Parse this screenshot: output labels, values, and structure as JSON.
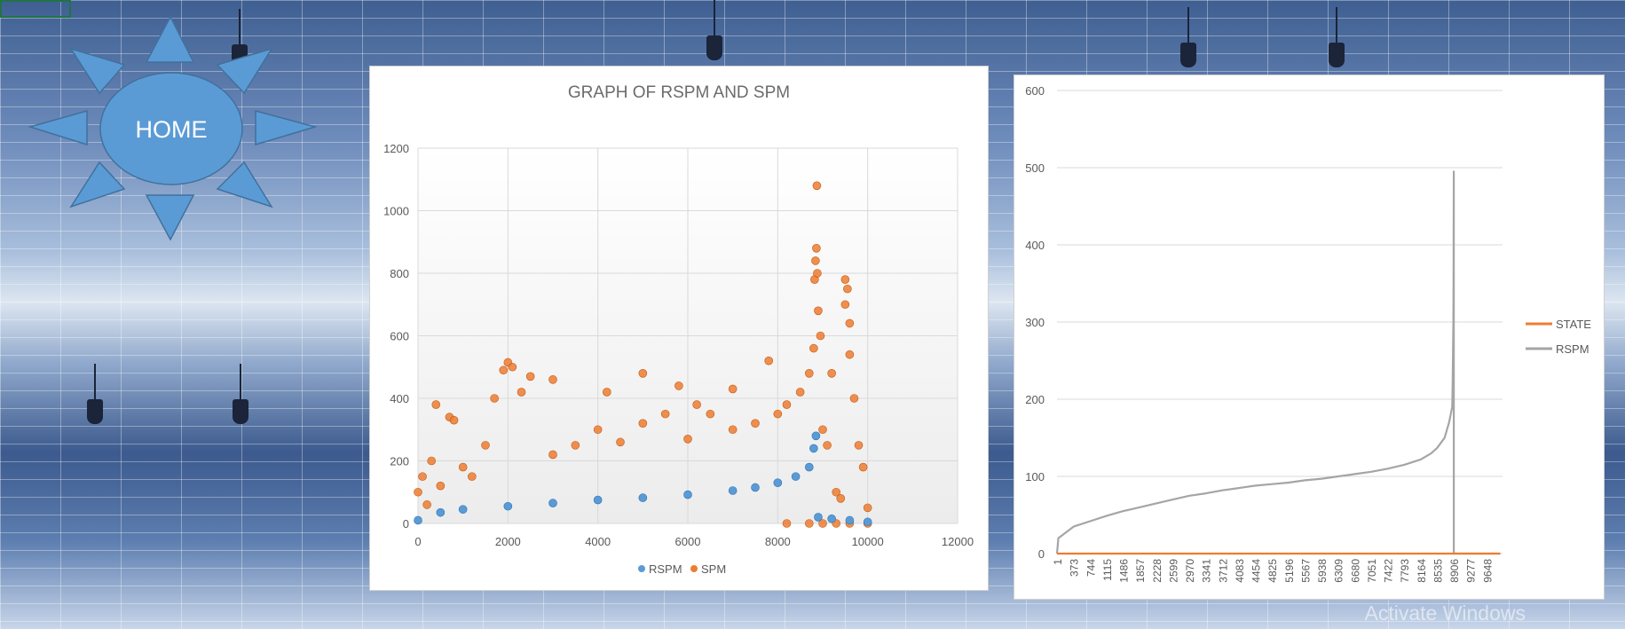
{
  "home_button": {
    "label": "HOME"
  },
  "watermark": "Activate Windows",
  "chart_data": [
    {
      "type": "scatter",
      "title": "GRAPH OF RSPM AND SPM",
      "xlim": [
        0,
        12000
      ],
      "ylim": [
        0,
        1200
      ],
      "x_ticks": [
        "0",
        "2000",
        "4000",
        "6000",
        "8000",
        "10000",
        "12000"
      ],
      "y_ticks": [
        "0",
        "200",
        "400",
        "600",
        "800",
        "1000",
        "1200"
      ],
      "grid": true,
      "legend_position": "bottom",
      "series": [
        {
          "name": "RSPM",
          "color": "#5b9bd5",
          "points": [
            [
              0,
              10
            ],
            [
              500,
              35
            ],
            [
              1000,
              45
            ],
            [
              2000,
              55
            ],
            [
              3000,
              65
            ],
            [
              4000,
              75
            ],
            [
              5000,
              82
            ],
            [
              6000,
              92
            ],
            [
              7000,
              105
            ],
            [
              7500,
              115
            ],
            [
              8000,
              130
            ],
            [
              8400,
              150
            ],
            [
              8700,
              180
            ],
            [
              8800,
              240
            ],
            [
              8850,
              280
            ],
            [
              8900,
              20
            ],
            [
              9200,
              15
            ],
            [
              9600,
              10
            ],
            [
              10000,
              5
            ]
          ]
        },
        {
          "name": "SPM",
          "color": "#ed7d31",
          "points": [
            [
              0,
              100
            ],
            [
              100,
              150
            ],
            [
              200,
              60
            ],
            [
              300,
              200
            ],
            [
              400,
              380
            ],
            [
              500,
              120
            ],
            [
              700,
              340
            ],
            [
              800,
              330
            ],
            [
              1000,
              180
            ],
            [
              1200,
              150
            ],
            [
              1500,
              250
            ],
            [
              1700,
              400
            ],
            [
              1900,
              490
            ],
            [
              2000,
              515
            ],
            [
              2100,
              500
            ],
            [
              2300,
              420
            ],
            [
              2500,
              470
            ],
            [
              3000,
              460
            ],
            [
              3000,
              220
            ],
            [
              3500,
              250
            ],
            [
              4000,
              300
            ],
            [
              4200,
              420
            ],
            [
              4500,
              260
            ],
            [
              5000,
              480
            ],
            [
              5000,
              320
            ],
            [
              5500,
              350
            ],
            [
              5800,
              440
            ],
            [
              6000,
              270
            ],
            [
              6200,
              380
            ],
            [
              6500,
              350
            ],
            [
              7000,
              430
            ],
            [
              7000,
              300
            ],
            [
              7500,
              320
            ],
            [
              7800,
              520
            ],
            [
              8000,
              350
            ],
            [
              8200,
              380
            ],
            [
              8500,
              420
            ],
            [
              8700,
              480
            ],
            [
              8800,
              560
            ],
            [
              8820,
              780
            ],
            [
              8840,
              840
            ],
            [
              8860,
              880
            ],
            [
              8870,
              1080
            ],
            [
              8880,
              800
            ],
            [
              8900,
              680
            ],
            [
              8950,
              600
            ],
            [
              9000,
              300
            ],
            [
              9100,
              250
            ],
            [
              9200,
              480
            ],
            [
              9300,
              100
            ],
            [
              9400,
              80
            ],
            [
              9500,
              780
            ],
            [
              9500,
              700
            ],
            [
              9550,
              750
            ],
            [
              9600,
              640
            ],
            [
              9600,
              540
            ],
            [
              9700,
              400
            ],
            [
              9800,
              250
            ],
            [
              9900,
              180
            ],
            [
              10000,
              50
            ],
            [
              8200,
              0
            ],
            [
              8700,
              0
            ],
            [
              9000,
              0
            ],
            [
              9300,
              0
            ],
            [
              9600,
              0
            ],
            [
              10000,
              0
            ]
          ]
        }
      ]
    },
    {
      "type": "line",
      "title": "",
      "ylim": [
        0,
        600
      ],
      "y_ticks": [
        "0",
        "100",
        "200",
        "300",
        "400",
        "500",
        "600"
      ],
      "x_ticks": [
        "1",
        "373",
        "744",
        "1115",
        "1486",
        "1857",
        "2228",
        "2599",
        "2970",
        "3341",
        "3712",
        "4083",
        "4454",
        "4825",
        "5196",
        "5567",
        "5938",
        "6309",
        "6680",
        "7051",
        "7422",
        "7793",
        "8164",
        "8535",
        "8906",
        "9277",
        "9648"
      ],
      "grid": true,
      "legend_position": "right",
      "series": [
        {
          "name": "STATE",
          "color": "#ed7d31",
          "x": [
            1,
            8906,
            9950
          ],
          "y": [
            0,
            0,
            0
          ]
        },
        {
          "name": "RSPM",
          "color": "#a5a5a5",
          "x": [
            1,
            30,
            373,
            744,
            1115,
            1486,
            1857,
            2228,
            2599,
            2970,
            3341,
            3712,
            4083,
            4454,
            4825,
            5196,
            5567,
            5938,
            6309,
            6680,
            7051,
            7422,
            7793,
            8164,
            8400,
            8535,
            8700,
            8800,
            8870,
            8880,
            8890,
            8896,
            8900,
            8903,
            8905,
            8906,
            8906,
            8907,
            9277,
            9648,
            9950
          ],
          "y": [
            0,
            20,
            35,
            42,
            49,
            55,
            60,
            65,
            70,
            75,
            78,
            82,
            85,
            88,
            90,
            92,
            95,
            97,
            100,
            103,
            106,
            110,
            115,
            122,
            130,
            137,
            150,
            170,
            190,
            220,
            270,
            300,
            350,
            400,
            450,
            495,
            10,
            0,
            0,
            0,
            0
          ]
        }
      ]
    }
  ]
}
